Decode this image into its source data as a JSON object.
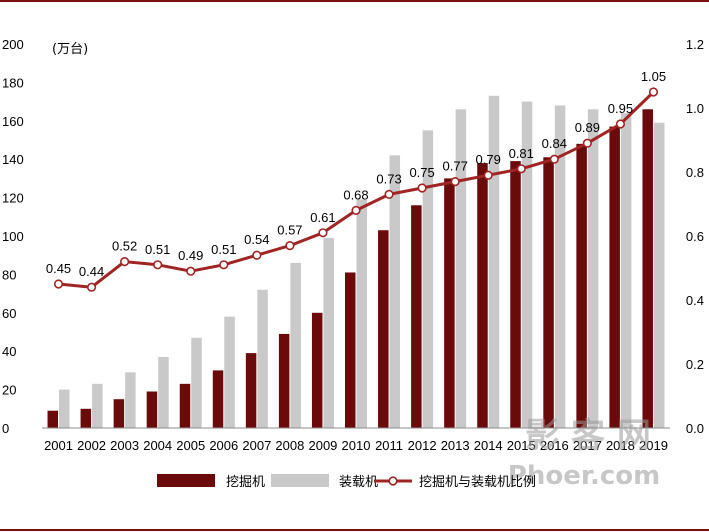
{
  "colors": {
    "excavator": "#6b0a0a",
    "loader": "#c9c9c9",
    "ratio_line": "#a02424",
    "rule": "#7a1010"
  },
  "chart_data": {
    "type": "bar",
    "unit_label": "(万台)",
    "categories": [
      "2001",
      "2002",
      "2003",
      "2004",
      "2005",
      "2006",
      "2007",
      "2008",
      "2009",
      "2010",
      "2011",
      "2012",
      "2013",
      "2014",
      "2015",
      "2016",
      "2017",
      "2018",
      "2019"
    ],
    "series": [
      {
        "name": "挖掘机",
        "type": "bar",
        "axis": "left",
        "values": [
          9,
          10,
          15,
          19,
          23,
          30,
          39,
          49,
          60,
          81,
          103,
          116,
          130,
          138,
          139,
          141,
          148,
          157,
          166
        ]
      },
      {
        "name": "装载机",
        "type": "bar",
        "axis": "left",
        "values": [
          20,
          23,
          29,
          37,
          47,
          58,
          72,
          86,
          99,
          119,
          142,
          155,
          166,
          173,
          170,
          168,
          166,
          164,
          159
        ]
      },
      {
        "name": "挖掘机与装载机比例",
        "type": "line",
        "axis": "right",
        "values": [
          0.45,
          0.44,
          0.52,
          0.51,
          0.49,
          0.51,
          0.54,
          0.57,
          0.61,
          0.68,
          0.73,
          0.75,
          0.77,
          0.79,
          0.81,
          0.84,
          0.89,
          0.95,
          1.05
        ],
        "labels": [
          "0.45",
          "0.44",
          "0.52",
          "0.51",
          "0.49",
          "0.51",
          "0.54",
          "0.57",
          "0.61",
          "0.68",
          "0.73",
          "0.75",
          "0.77",
          "0.79",
          "0.81",
          "0.84",
          "0.89",
          "0.95",
          "1.05"
        ]
      }
    ],
    "y_left": {
      "min": 0,
      "max": 200,
      "ticks": [
        "0",
        "20",
        "40",
        "60",
        "80",
        "100",
        "120",
        "140",
        "160",
        "180",
        "200"
      ]
    },
    "y_right": {
      "min": 0,
      "max": 1.2,
      "ticks": [
        "0.0",
        "0.2",
        "0.4",
        "0.6",
        "0.8",
        "1.0",
        "1.2"
      ]
    },
    "grid": false,
    "legend_position": "bottom"
  },
  "watermark": {
    "line1": "影 客 网",
    "line2": "Phoer.com"
  }
}
